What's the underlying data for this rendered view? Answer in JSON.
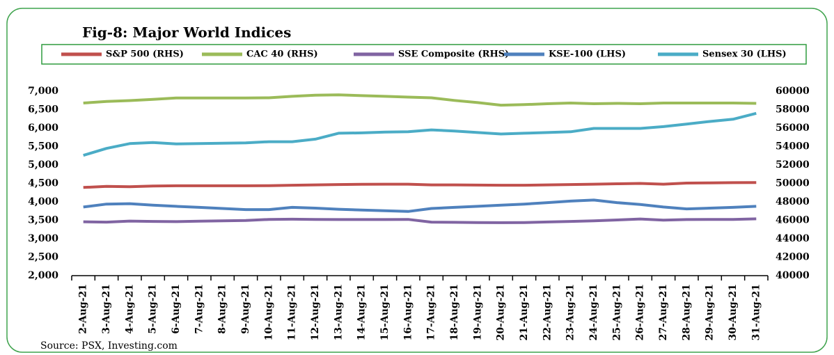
{
  "chart_data": {
    "type": "line",
    "title": "Fig-8: Major World Indices",
    "source": "Source: PSX, Investing.com",
    "categories": [
      "2-Aug-21",
      "3-Aug-21",
      "4-Aug-21",
      "5-Aug-21",
      "6-Aug-21",
      "7-Aug-21",
      "8-Aug-21",
      "9-Aug-21",
      "10-Aug-21",
      "11-Aug-21",
      "12-Aug-21",
      "13-Aug-21",
      "14-Aug-21",
      "15-Aug-21",
      "16-Aug-21",
      "17-Aug-21",
      "18-Aug-21",
      "19-Aug-21",
      "20-Aug-21",
      "21-Aug-21",
      "22-Aug-21",
      "23-Aug-21",
      "24-Aug-21",
      "25-Aug-21",
      "26-Aug-21",
      "27-Aug-21",
      "28-Aug-21",
      "29-Aug-21",
      "30-Aug-21",
      "31-Aug-21"
    ],
    "series": [
      {
        "name": "S&P 500 (RHS)",
        "color": "#c0504d",
        "axis": "y",
        "values": [
          4390,
          4420,
          4410,
          4430,
          4435,
          4435,
          4435,
          4435,
          4440,
          4450,
          4460,
          4470,
          4475,
          4480,
          4480,
          4460,
          4460,
          4455,
          4450,
          4450,
          4460,
          4470,
          4480,
          4490,
          4500,
          4480,
          4510,
          4515,
          4520,
          4525
        ]
      },
      {
        "name": "CAC 40 (RHS)",
        "color": "#9bbb59",
        "axis": "y",
        "values": [
          6680,
          6720,
          6745,
          6780,
          6815,
          6815,
          6815,
          6815,
          6820,
          6860,
          6890,
          6900,
          6880,
          6860,
          6840,
          6820,
          6750,
          6690,
          6620,
          6635,
          6660,
          6680,
          6660,
          6670,
          6660,
          6680,
          6680,
          6680,
          6680,
          6670
        ]
      },
      {
        "name": "SSE Composite (RHS)",
        "color": "#8064a2",
        "axis": "y",
        "values": [
          3460,
          3450,
          3480,
          3470,
          3465,
          3475,
          3485,
          3495,
          3525,
          3530,
          3525,
          3520,
          3520,
          3520,
          3525,
          3450,
          3445,
          3440,
          3435,
          3440,
          3455,
          3470,
          3485,
          3510,
          3535,
          3505,
          3520,
          3525,
          3525,
          3540
        ]
      },
      {
        "name": "KSE-100 (LHS)",
        "color": "#4f81bd",
        "axis": "y2",
        "values": [
          47440,
          47760,
          47800,
          47640,
          47520,
          47400,
          47280,
          47160,
          47160,
          47400,
          47320,
          47200,
          47120,
          47040,
          46960,
          47280,
          47400,
          47520,
          47640,
          47760,
          47920,
          48080,
          48200,
          47920,
          47720,
          47440,
          47240,
          47320,
          47400,
          47520
        ]
      },
      {
        "name": "Sensex 30 (LHS)",
        "color": "#4bacc6",
        "axis": "y2",
        "values": [
          53040,
          53800,
          54320,
          54440,
          54280,
          54320,
          54360,
          54400,
          54520,
          54520,
          54800,
          55440,
          55480,
          55560,
          55600,
          55800,
          55680,
          55520,
          55360,
          55440,
          55520,
          55600,
          55960,
          55960,
          55960,
          56160,
          56440,
          56720,
          56960,
          57600
        ]
      }
    ],
    "ylim": [
      2000,
      7000
    ],
    "yticks": [
      {
        "value": 2000,
        "label": "2,000"
      },
      {
        "value": 2500,
        "label": "2,500"
      },
      {
        "value": 3000,
        "label": "3,000"
      },
      {
        "value": 3500,
        "label": "3,500"
      },
      {
        "value": 4000,
        "label": "4,000"
      },
      {
        "value": 4500,
        "label": "4,500"
      },
      {
        "value": 5000,
        "label": "5,000"
      },
      {
        "value": 5500,
        "label": "5,500"
      },
      {
        "value": 6000,
        "label": "6,000"
      },
      {
        "value": 6500,
        "label": "6,500"
      },
      {
        "value": 7000,
        "label": "7,000"
      }
    ],
    "y2lim": [
      40000,
      60000
    ],
    "y2ticks": [
      40000,
      42000,
      44000,
      46000,
      48000,
      50000,
      52000,
      54000,
      56000,
      58000,
      60000
    ],
    "legend": "top",
    "grid": false
  }
}
